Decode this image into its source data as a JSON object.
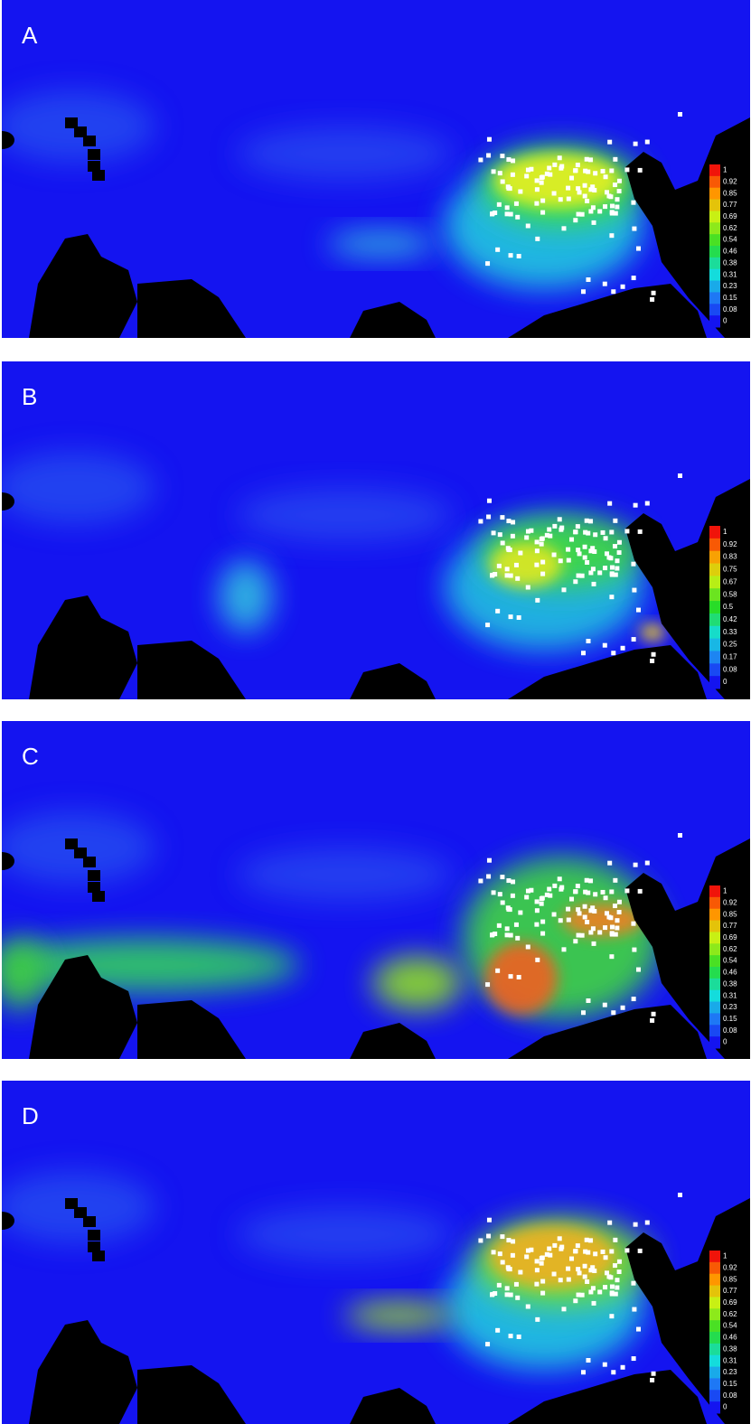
{
  "panels": [
    {
      "label": "A",
      "legend": [
        1,
        0.92,
        0.85,
        0.77,
        0.69,
        0.62,
        0.54,
        0.46,
        0.38,
        0.31,
        0.23,
        0.15,
        0.08,
        0
      ]
    },
    {
      "label": "B",
      "legend": [
        1,
        0.92,
        0.83,
        0.75,
        0.67,
        0.58,
        0.5,
        0.42,
        0.33,
        0.25,
        0.17,
        0.08,
        0
      ]
    },
    {
      "label": "C",
      "legend": [
        1,
        0.92,
        0.85,
        0.77,
        0.69,
        0.62,
        0.54,
        0.46,
        0.38,
        0.31,
        0.23,
        0.15,
        0.08,
        0
      ]
    },
    {
      "label": "D",
      "legend": [
        1,
        0.92,
        0.85,
        0.77,
        0.69,
        0.62,
        0.54,
        0.46,
        0.38,
        0.31,
        0.23,
        0.15,
        0.08,
        0
      ]
    }
  ]
}
